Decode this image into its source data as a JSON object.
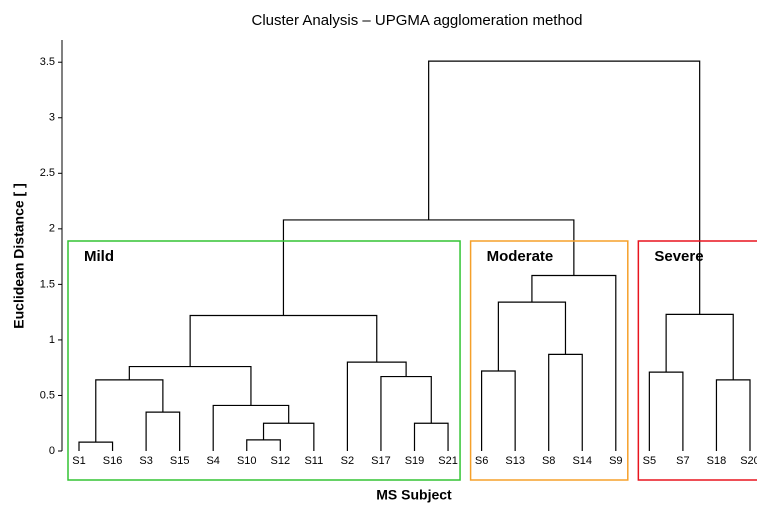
{
  "chart_data": {
    "type": "dendrogram",
    "title": "Cluster Analysis – UPGMA agglomeration method",
    "x_label": "MS Subject",
    "y_label": "Euclidean Distance [ ]",
    "leaves": [
      "S1",
      "S16",
      "S3",
      "S15",
      "S4",
      "S10",
      "S12",
      "S11",
      "S2",
      "S17",
      "S19",
      "S21",
      "S6",
      "S13",
      "S8",
      "S14",
      "S9",
      "S5",
      "S7",
      "S18",
      "S20"
    ],
    "links": [
      {
        "children": [
          0,
          1
        ],
        "height": 0.08
      },
      {
        "children": [
          2,
          3
        ],
        "height": 0.35
      },
      {
        "children": [
          21,
          22
        ],
        "height": 0.64
      },
      {
        "children": [
          5,
          6
        ],
        "height": 0.1
      },
      {
        "children": [
          24,
          7
        ],
        "height": 0.25
      },
      {
        "children": [
          4,
          25
        ],
        "height": 0.41
      },
      {
        "children": [
          23,
          26
        ],
        "height": 0.76
      },
      {
        "children": [
          10,
          11
        ],
        "height": 0.25
      },
      {
        "children": [
          9,
          28
        ],
        "height": 0.67
      },
      {
        "children": [
          8,
          29
        ],
        "height": 0.8
      },
      {
        "children": [
          27,
          30
        ],
        "height": 1.22
      },
      {
        "children": [
          12,
          13
        ],
        "height": 0.72
      },
      {
        "children": [
          14,
          15
        ],
        "height": 0.87
      },
      {
        "children": [
          32,
          33
        ],
        "height": 1.34
      },
      {
        "children": [
          34,
          16
        ],
        "height": 1.58
      },
      {
        "children": [
          31,
          35
        ],
        "height": 2.08
      },
      {
        "children": [
          17,
          18
        ],
        "height": 0.71
      },
      {
        "children": [
          19,
          20
        ],
        "height": 0.64
      },
      {
        "children": [
          37,
          38
        ],
        "height": 1.23
      },
      {
        "children": [
          36,
          39
        ],
        "height": 3.51
      }
    ],
    "clusters": [
      {
        "label": "Mild",
        "color": "#33c433",
        "leaves": [
          0,
          11
        ]
      },
      {
        "label": "Moderate",
        "color": "#f5a02a",
        "leaves": [
          12,
          16
        ]
      },
      {
        "label": "Severe",
        "color": "#e8141e",
        "leaves": [
          17,
          20
        ]
      }
    ],
    "ylim": [
      0,
      3.7
    ],
    "yticks": [
      0,
      0.5,
      1,
      1.5,
      2,
      2.5,
      3,
      3.5
    ],
    "line_color": "#000000"
  }
}
